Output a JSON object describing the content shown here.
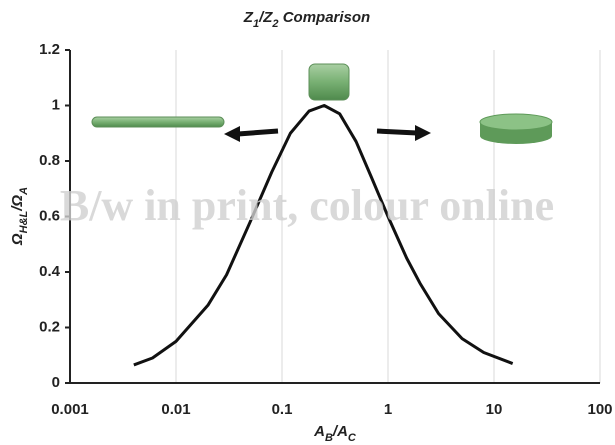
{
  "chart_data": {
    "type": "line",
    "title": [
      {
        "text": "Z"
      },
      {
        "text": "1",
        "sub": true
      },
      {
        "text": "/Z"
      },
      {
        "text": "2",
        "sub": true
      },
      {
        "text": " Comparison"
      }
    ],
    "x_label": [
      {
        "text": "A"
      },
      {
        "text": "B",
        "sub": true
      },
      {
        "text": "/A"
      },
      {
        "text": "C",
        "sub": true
      }
    ],
    "y_label": [
      {
        "text": "Ω"
      },
      {
        "text": "H&L",
        "sub": true
      },
      {
        "text": "/Ω"
      },
      {
        "text": "A",
        "sub": true
      }
    ],
    "annotation": "B/w in print, colour online",
    "x": [
      0.004,
      0.006,
      0.01,
      0.02,
      0.03,
      0.05,
      0.08,
      0.12,
      0.18,
      0.25,
      0.35,
      0.5,
      0.7,
      1,
      1.5,
      2,
      3,
      5,
      8,
      15
    ],
    "series": [
      {
        "color": "#111111",
        "values": [
          0.065,
          0.09,
          0.15,
          0.28,
          0.39,
          0.58,
          0.76,
          0.9,
          0.98,
          1.0,
          0.97,
          0.87,
          0.74,
          0.6,
          0.45,
          0.36,
          0.25,
          0.16,
          0.11,
          0.07
        ]
      }
    ],
    "xlim": [
      0.001,
      100
    ],
    "xticks": [
      0.001,
      0.01,
      0.1,
      1,
      10,
      100
    ],
    "xlog": true,
    "ylim": [
      0,
      1.2
    ],
    "yticks": [
      0,
      0.2,
      0.4,
      0.6,
      0.8,
      1,
      1.2
    ],
    "grid_x": true
  }
}
